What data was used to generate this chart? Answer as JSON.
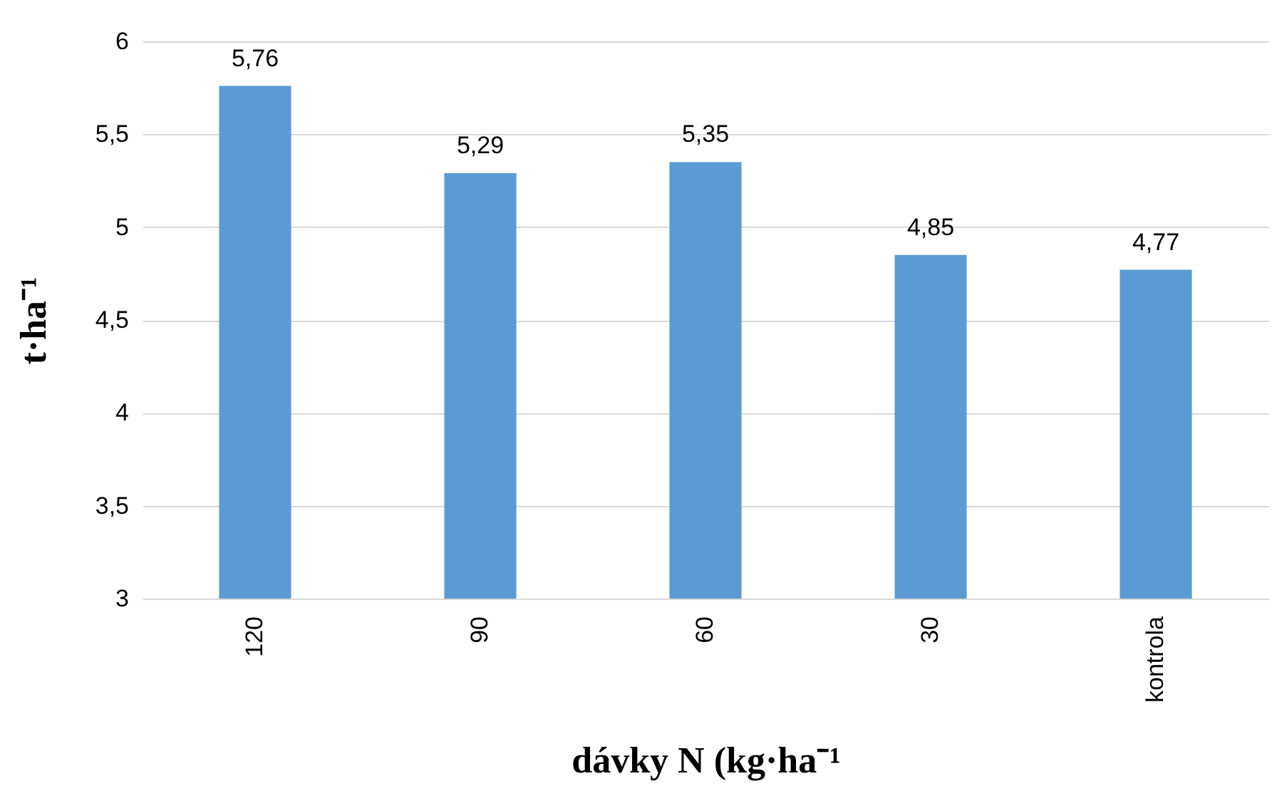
{
  "chart_data": {
    "type": "bar",
    "xlabel": "dávky N (kg·ha⁻¹",
    "ylabel": "t·ha⁻¹",
    "categories": [
      "120",
      "90",
      "60",
      "30",
      "kontrola"
    ],
    "values": [
      5.76,
      5.29,
      5.35,
      4.85,
      4.77
    ],
    "value_labels": [
      "5,76",
      "5,29",
      "5,35",
      "4,85",
      "4,77"
    ],
    "color": "#5b9bd5",
    "ylim": [
      3,
      6
    ],
    "yticks": [
      3,
      {
        "value": 3.5,
        "label": "3,5"
      },
      4,
      {
        "value": 4.5,
        "label": "4,5"
      },
      5,
      {
        "value": 5.5,
        "label": "5,5"
      },
      6
    ],
    "grid": "y"
  }
}
